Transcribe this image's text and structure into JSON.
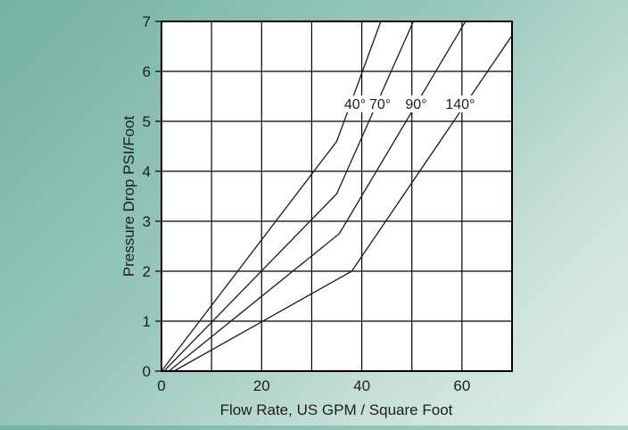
{
  "chart_data": {
    "type": "line",
    "title": "",
    "xlabel": "Flow Rate, US GPM / Square Foot",
    "ylabel": "Pressure Drop PSI/Foot",
    "xlim": [
      0,
      70
    ],
    "ylim": [
      0,
      7
    ],
    "xticks": [
      0,
      20,
      40,
      60
    ],
    "yticks": [
      0,
      1,
      2,
      3,
      4,
      5,
      6,
      7
    ],
    "xgrid": [
      0,
      10,
      20,
      30,
      40,
      50,
      60,
      70
    ],
    "grid": true,
    "series": [
      {
        "name": "40°",
        "x": [
          0,
          35,
          43.8
        ],
        "y": [
          0,
          4.6,
          7.0
        ]
      },
      {
        "name": "70°",
        "x": [
          0.5,
          35,
          50.3
        ],
        "y": [
          0,
          3.55,
          7.0
        ]
      },
      {
        "name": "90°",
        "x": [
          1.5,
          35.5,
          60.7
        ],
        "y": [
          0,
          2.75,
          7.0
        ]
      },
      {
        "name": "140°",
        "x": [
          2.5,
          38,
          70
        ],
        "y": [
          0,
          2.0,
          6.72
        ]
      }
    ],
    "series_labels": [
      {
        "text": "40°",
        "x": 36.5,
        "y": 5.25
      },
      {
        "text": "70°",
        "x": 41.5,
        "y": 5.25
      },
      {
        "text": "90°",
        "x": 48.7,
        "y": 5.25
      },
      {
        "text": "140°",
        "x": 56.7,
        "y": 5.25
      }
    ]
  }
}
